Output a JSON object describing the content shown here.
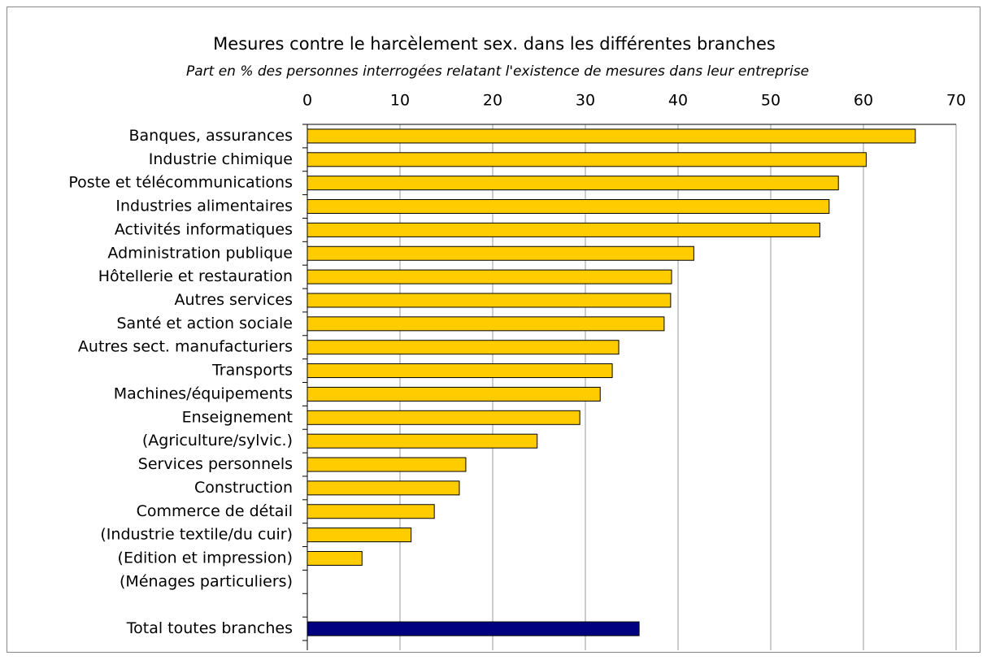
{
  "chart_data": {
    "type": "barh",
    "title": "Mesures contre le harcèlement sex. dans les différentes branches",
    "subtitle": "Part en % des personnes interrogées relatant l'existence de mesures dans leur entreprise",
    "categories": [
      "Banques, assurances",
      "Industrie chimique",
      "Poste et télécommunications",
      "Industries alimentaires",
      "Activités informatiques",
      "Administration publique",
      "Hôtellerie et restauration",
      "Autres services",
      "Santé et action sociale",
      "Autres sect. manufacturiers",
      "Transports",
      "Machines/équipements",
      "Enseignement",
      "(Agriculture/sylvic.)",
      "Services personnels",
      "Construction",
      "Commerce de détail",
      "(Industrie textile/du cuir)",
      "(Edition et impression)",
      "(Ménages particuliers)",
      null,
      "Total toutes branches"
    ],
    "values": [
      65.6,
      60.3,
      57.3,
      56.3,
      55.3,
      41.7,
      39.3,
      39.2,
      38.5,
      33.6,
      32.9,
      31.6,
      29.4,
      24.8,
      17.1,
      16.4,
      13.7,
      11.2,
      5.9,
      null,
      null,
      35.8
    ],
    "colors": [
      "#ffcc00",
      "#ffcc00",
      "#ffcc00",
      "#ffcc00",
      "#ffcc00",
      "#ffcc00",
      "#ffcc00",
      "#ffcc00",
      "#ffcc00",
      "#ffcc00",
      "#ffcc00",
      "#ffcc00",
      "#ffcc00",
      "#ffcc00",
      "#ffcc00",
      "#ffcc00",
      "#ffcc00",
      "#ffcc00",
      "#ffcc00",
      "#ffcc00",
      "#ffcc00",
      "#000080"
    ],
    "xlim": [
      0,
      70
    ],
    "xticks": [
      0,
      10,
      20,
      30,
      40,
      50,
      60,
      70
    ],
    "grid": true
  }
}
